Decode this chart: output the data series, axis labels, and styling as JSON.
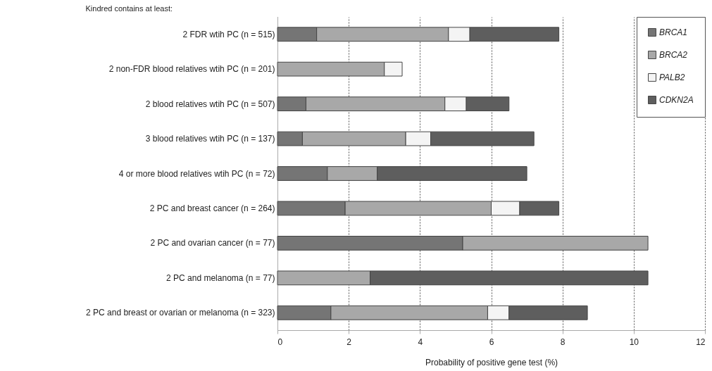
{
  "chart_data": {
    "type": "bar",
    "orientation": "horizontal",
    "stacked": true,
    "title": "Kindred contains at least:",
    "xlabel": "Probability of positive gene test (%)",
    "categories": [
      "2 FDR wtih PC (n = 515)",
      "2 non-FDR blood relatives wtih PC (n = 201)",
      "2 blood relatives wtih PC (n = 507)",
      "3 blood relatives wtih PC (n = 137)",
      "4 or more blood relatives wtih PC (n = 72)",
      "2 PC and breast cancer (n = 264)",
      "2 PC and ovarian cancer (n = 77)",
      "2 PC and melanoma (n = 77)",
      "2 PC and breast or ovarian or melanoma (n = 323)"
    ],
    "series": [
      {
        "name": "BRCA1",
        "color": "#757575",
        "values": [
          1.1,
          null,
          0.8,
          0.7,
          1.4,
          1.9,
          5.2,
          null,
          1.5
        ]
      },
      {
        "name": "BRCA2",
        "color": "#a8a8a8",
        "values": [
          3.7,
          3.0,
          3.9,
          2.9,
          1.4,
          4.1,
          5.2,
          2.6,
          4.4
        ]
      },
      {
        "name": "PALB2",
        "color": "#f4f4f4",
        "values": [
          0.6,
          0.5,
          0.6,
          0.7,
          null,
          0.8,
          null,
          null,
          0.6
        ]
      },
      {
        "name": "CDKN2A",
        "color": "#5e5e5e",
        "values": [
          2.5,
          null,
          1.2,
          2.9,
          4.2,
          1.1,
          null,
          7.8,
          2.2
        ]
      }
    ],
    "xlim": [
      0,
      12
    ],
    "xticks": [
      0,
      2,
      4,
      6,
      8,
      10,
      12
    ],
    "grid": "x",
    "legend": "top right"
  }
}
